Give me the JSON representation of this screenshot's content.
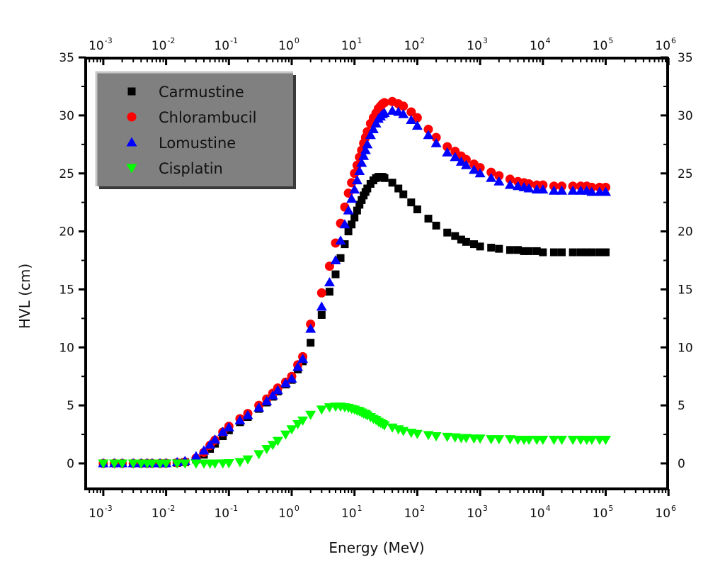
{
  "chart_data": {
    "type": "scatter",
    "title": "",
    "xlabel": "Energy (MeV)",
    "ylabel": "HVL (cm)",
    "xscale": "log",
    "xlim": [
      0.0005,
      1000000
    ],
    "ylim": [
      -2.2,
      35
    ],
    "x_ticks": [
      {
        "base": "10",
        "exp": "-3",
        "value": 0.001
      },
      {
        "base": "10",
        "exp": "-2",
        "value": 0.01
      },
      {
        "base": "10",
        "exp": "-1",
        "value": 0.1
      },
      {
        "base": "10",
        "exp": "0",
        "value": 1
      },
      {
        "base": "10",
        "exp": "1",
        "value": 10
      },
      {
        "base": "10",
        "exp": "2",
        "value": 100
      },
      {
        "base": "10",
        "exp": "3",
        "value": 1000
      },
      {
        "base": "10",
        "exp": "4",
        "value": 10000
      },
      {
        "base": "10",
        "exp": "5",
        "value": 100000
      },
      {
        "base": "10",
        "exp": "6",
        "value": 1000000
      }
    ],
    "y_ticks": [
      "0",
      "5",
      "10",
      "15",
      "20",
      "25",
      "30",
      "35"
    ],
    "grid": false,
    "mirror_axes": true,
    "legend_position": "top-left",
    "x": [
      0.001,
      0.0015,
      0.002,
      0.003,
      0.004,
      0.005,
      0.006,
      0.008,
      0.01,
      0.015,
      0.02,
      0.03,
      0.04,
      0.05,
      0.06,
      0.08,
      0.1,
      0.15,
      0.2,
      0.3,
      0.4,
      0.5,
      0.6,
      0.8,
      1,
      1.25,
      1.5,
      2,
      3,
      4,
      5,
      6,
      7,
      8,
      9,
      10,
      11,
      12,
      13,
      14,
      15,
      16,
      18,
      20,
      22,
      24,
      26,
      28,
      30,
      40,
      50,
      60,
      80,
      100,
      150,
      200,
      300,
      400,
      500,
      600,
      800,
      1000,
      1500,
      2000,
      3000,
      4000,
      5000,
      6000,
      8000,
      10000,
      15000,
      20000,
      30000,
      40000,
      50000,
      60000,
      80000,
      100000
    ],
    "series": [
      {
        "name": "Carmustine",
        "color": "#000000",
        "marker": "square",
        "values": [
          0.0,
          0.0,
          0.0,
          0.0,
          0.0,
          0.0,
          0.0,
          0.0,
          0.01,
          0.04,
          0.1,
          0.33,
          0.75,
          1.25,
          1.7,
          2.35,
          2.85,
          3.55,
          4.0,
          4.7,
          5.25,
          5.75,
          6.2,
          6.8,
          7.2,
          8.1,
          8.8,
          10.4,
          12.8,
          14.8,
          16.3,
          17.7,
          18.9,
          20.0,
          20.6,
          21.2,
          21.8,
          22.3,
          22.7,
          23.1,
          23.4,
          23.7,
          24.1,
          24.4,
          24.6,
          24.7,
          24.7,
          24.7,
          24.6,
          24.2,
          23.7,
          23.2,
          22.5,
          21.9,
          21.1,
          20.5,
          19.9,
          19.6,
          19.3,
          19.1,
          18.9,
          18.7,
          18.6,
          18.5,
          18.4,
          18.4,
          18.3,
          18.3,
          18.3,
          18.2,
          18.2,
          18.2,
          18.2,
          18.2,
          18.2,
          18.2,
          18.2,
          18.2
        ]
      },
      {
        "name": "Chlorambucil",
        "color": "#ff0000",
        "marker": "circle",
        "values": [
          0.0,
          0.0,
          0.0,
          0.0,
          0.0,
          0.0,
          0.0,
          0.0,
          0.01,
          0.05,
          0.12,
          0.45,
          0.95,
          1.55,
          2.0,
          2.7,
          3.2,
          3.85,
          4.3,
          5.0,
          5.55,
          6.05,
          6.5,
          7.0,
          7.5,
          8.5,
          9.2,
          12.0,
          14.7,
          17.0,
          19.0,
          20.7,
          22.1,
          23.3,
          24.2,
          25.0,
          25.7,
          26.4,
          27.0,
          27.6,
          28.1,
          28.6,
          29.3,
          29.8,
          30.2,
          30.6,
          30.8,
          31.0,
          31.1,
          31.2,
          31.0,
          30.8,
          30.3,
          29.8,
          28.8,
          28.1,
          27.3,
          26.9,
          26.5,
          26.2,
          25.8,
          25.5,
          25.1,
          24.8,
          24.5,
          24.3,
          24.2,
          24.1,
          24.0,
          24.0,
          23.9,
          23.9,
          23.9,
          23.9,
          23.9,
          23.8,
          23.8,
          23.8
        ]
      },
      {
        "name": "Lomustine",
        "color": "#0000ff",
        "marker": "triangle-up",
        "values": [
          0.0,
          0.0,
          0.0,
          0.0,
          0.0,
          0.0,
          0.0,
          0.0,
          0.01,
          0.1,
          0.2,
          0.6,
          1.1,
          1.6,
          2.05,
          2.7,
          3.1,
          3.7,
          4.15,
          4.8,
          5.35,
          5.85,
          6.3,
          6.9,
          7.3,
          8.3,
          9.0,
          11.6,
          13.5,
          15.6,
          17.5,
          19.2,
          20.6,
          21.8,
          22.8,
          23.6,
          24.4,
          25.2,
          25.9,
          26.5,
          27.0,
          27.5,
          28.3,
          28.8,
          29.3,
          29.7,
          29.9,
          30.1,
          30.2,
          30.4,
          30.3,
          30.1,
          29.6,
          29.1,
          28.3,
          27.6,
          26.8,
          26.4,
          26.0,
          25.7,
          25.3,
          25.0,
          24.6,
          24.3,
          24.0,
          23.9,
          23.8,
          23.7,
          23.6,
          23.6,
          23.5,
          23.5,
          23.5,
          23.5,
          23.5,
          23.4,
          23.4,
          23.4
        ]
      },
      {
        "name": "Cisplatin",
        "color": "#00ff00",
        "marker": "triangle-down",
        "values": [
          0.0,
          0.0,
          0.0,
          0.0,
          0.0,
          0.0,
          0.0,
          0.0,
          0.0,
          0.0,
          0.0,
          0.0,
          0.0,
          0.0,
          0.0,
          0.01,
          0.03,
          0.12,
          0.35,
          0.8,
          1.25,
          1.6,
          1.95,
          2.5,
          2.95,
          3.4,
          3.7,
          4.2,
          4.65,
          4.85,
          4.9,
          4.9,
          4.85,
          4.8,
          4.7,
          4.65,
          4.55,
          4.5,
          4.4,
          4.3,
          4.25,
          4.15,
          4.0,
          3.85,
          3.75,
          3.6,
          3.5,
          3.4,
          3.3,
          3.1,
          2.95,
          2.8,
          2.65,
          2.55,
          2.45,
          2.35,
          2.3,
          2.25,
          2.2,
          2.2,
          2.15,
          2.15,
          2.1,
          2.1,
          2.1,
          2.05,
          2.05,
          2.05,
          2.05,
          2.05,
          2.05,
          2.05,
          2.05,
          2.05,
          2.05,
          2.05,
          2.05,
          2.05
        ]
      }
    ]
  }
}
